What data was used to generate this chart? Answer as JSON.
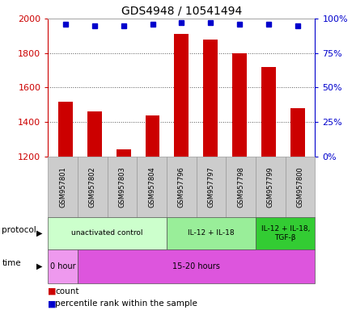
{
  "title": "GDS4948 / 10541494",
  "samples": [
    "GSM957801",
    "GSM957802",
    "GSM957803",
    "GSM957804",
    "GSM957796",
    "GSM957797",
    "GSM957798",
    "GSM957799",
    "GSM957800"
  ],
  "counts": [
    1520,
    1460,
    1240,
    1440,
    1910,
    1880,
    1800,
    1720,
    1480
  ],
  "percentile_ranks": [
    96,
    95,
    95,
    96,
    97,
    97,
    96,
    96,
    95
  ],
  "ylim": [
    1200,
    2000
  ],
  "right_ylim": [
    0,
    100
  ],
  "right_yticks": [
    0,
    25,
    50,
    75,
    100
  ],
  "left_yticks": [
    1200,
    1400,
    1600,
    1800,
    2000
  ],
  "bar_color": "#cc0000",
  "dot_color": "#0000cc",
  "bar_width": 0.5,
  "protocol_groups": [
    {
      "label": "unactivated control",
      "start": 0,
      "end": 4,
      "color": "#ccffcc"
    },
    {
      "label": "IL-12 + IL-18",
      "start": 4,
      "end": 7,
      "color": "#99ee99"
    },
    {
      "label": "IL-12 + IL-18,\nTGF-β",
      "start": 7,
      "end": 9,
      "color": "#33cc33"
    }
  ],
  "time_groups": [
    {
      "label": "0 hour",
      "start": 0,
      "end": 1,
      "color": "#ee99ee"
    },
    {
      "label": "15-20 hours",
      "start": 1,
      "end": 9,
      "color": "#dd55dd"
    }
  ],
  "left_axis_color": "#cc0000",
  "right_axis_color": "#0000cc",
  "grid_color": "#555555",
  "sample_box_color": "#cccccc",
  "sample_box_edge": "#999999",
  "legend_count_color": "#cc0000",
  "legend_pct_color": "#0000cc"
}
